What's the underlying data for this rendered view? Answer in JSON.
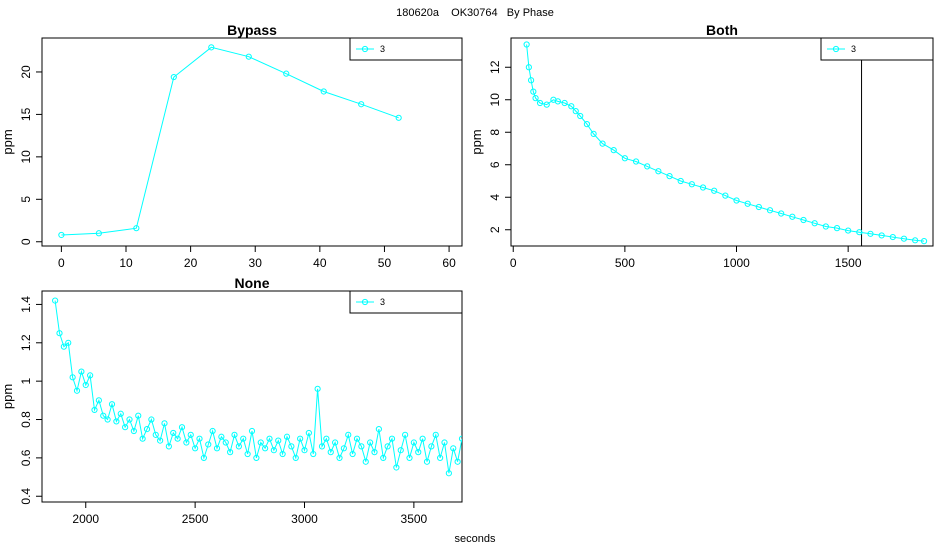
{
  "figure": {
    "suptitle": "180620a    OK30764   By Phase",
    "xlabel": "seconds"
  },
  "style": {
    "series_color": "#00ffff",
    "axis_color": "#000000"
  },
  "chart_data": [
    {
      "type": "line",
      "title": "Bypass",
      "xlabel": "",
      "ylabel": "ppm",
      "xlim": [
        -3,
        62
      ],
      "ylim": [
        -0.5,
        24
      ],
      "xticks": [
        0,
        10,
        20,
        30,
        40,
        50,
        60
      ],
      "yticks": [
        0,
        5,
        10,
        15,
        20
      ],
      "legend": {
        "position": "top-right",
        "entries": [
          "3"
        ]
      },
      "series": [
        {
          "name": "3",
          "x": [
            0,
            5.8,
            11.6,
            17.4,
            23.2,
            29.0,
            34.8,
            40.6,
            46.4,
            52.2
          ],
          "y": [
            0.8,
            1.0,
            1.6,
            19.4,
            22.9,
            21.8,
            19.8,
            17.7,
            16.2,
            14.6
          ]
        }
      ]
    },
    {
      "type": "line",
      "title": "Both",
      "xlabel": "",
      "ylabel": "ppm",
      "xlim": [
        -10,
        1880
      ],
      "ylim": [
        1.0,
        13.8
      ],
      "xticks": [
        0,
        500,
        1000,
        1500
      ],
      "yticks": [
        2,
        4,
        6,
        8,
        10,
        12
      ],
      "vline": 1560,
      "legend": {
        "position": "top-right",
        "entries": [
          "3"
        ]
      },
      "series": [
        {
          "name": "3",
          "x": [
            60,
            70,
            80,
            90,
            100,
            120,
            150,
            180,
            200,
            230,
            260,
            280,
            300,
            330,
            360,
            400,
            450,
            500,
            550,
            600,
            650,
            700,
            750,
            800,
            850,
            900,
            950,
            1000,
            1050,
            1100,
            1150,
            1200,
            1250,
            1300,
            1350,
            1400,
            1450,
            1500,
            1550,
            1600,
            1650,
            1700,
            1750,
            1800,
            1840
          ],
          "y": [
            13.4,
            12.0,
            11.2,
            10.5,
            10.1,
            9.8,
            9.7,
            10.0,
            9.9,
            9.8,
            9.6,
            9.3,
            9.0,
            8.5,
            7.9,
            7.3,
            6.9,
            6.4,
            6.2,
            5.9,
            5.6,
            5.3,
            5.0,
            4.8,
            4.6,
            4.4,
            4.1,
            3.8,
            3.6,
            3.4,
            3.2,
            3.0,
            2.8,
            2.6,
            2.4,
            2.2,
            2.1,
            1.95,
            1.85,
            1.75,
            1.65,
            1.55,
            1.45,
            1.35,
            1.3
          ]
        }
      ]
    },
    {
      "type": "line",
      "title": "None",
      "xlabel": "",
      "ylabel": "ppm",
      "xlim": [
        1800,
        3720
      ],
      "ylim": [
        0.37,
        1.47
      ],
      "xticks": [
        2000,
        2500,
        3000,
        3500
      ],
      "yticks": [
        0.4,
        0.6,
        0.8,
        1.0,
        1.2,
        1.4
      ],
      "legend": {
        "position": "top-right",
        "entries": [
          "3"
        ]
      },
      "series": [
        {
          "name": "3",
          "x": [
            1860,
            1880,
            1900,
            1920,
            1940,
            1960,
            1980,
            2000,
            2020,
            2040,
            2060,
            2080,
            2100,
            2120,
            2140,
            2160,
            2180,
            2200,
            2220,
            2240,
            2260,
            2280,
            2300,
            2320,
            2340,
            2360,
            2380,
            2400,
            2420,
            2440,
            2460,
            2480,
            2500,
            2520,
            2540,
            2560,
            2580,
            2600,
            2620,
            2640,
            2660,
            2680,
            2700,
            2720,
            2740,
            2760,
            2780,
            2800,
            2820,
            2840,
            2860,
            2880,
            2900,
            2920,
            2940,
            2960,
            2980,
            3000,
            3020,
            3040,
            3060,
            3080,
            3100,
            3120,
            3140,
            3160,
            3180,
            3200,
            3220,
            3240,
            3260,
            3280,
            3300,
            3320,
            3340,
            3360,
            3380,
            3400,
            3420,
            3440,
            3460,
            3480,
            3500,
            3520,
            3540,
            3560,
            3580,
            3600,
            3620,
            3640,
            3660,
            3680,
            3700,
            3720
          ],
          "y": [
            1.42,
            1.25,
            1.18,
            1.2,
            1.02,
            0.95,
            1.05,
            0.98,
            1.03,
            0.85,
            0.9,
            0.82,
            0.8,
            0.88,
            0.79,
            0.83,
            0.76,
            0.8,
            0.74,
            0.82,
            0.7,
            0.75,
            0.8,
            0.72,
            0.69,
            0.78,
            0.66,
            0.73,
            0.7,
            0.76,
            0.68,
            0.72,
            0.65,
            0.7,
            0.6,
            0.67,
            0.74,
            0.65,
            0.71,
            0.68,
            0.63,
            0.72,
            0.66,
            0.7,
            0.62,
            0.74,
            0.6,
            0.68,
            0.65,
            0.7,
            0.64,
            0.69,
            0.62,
            0.71,
            0.66,
            0.6,
            0.7,
            0.64,
            0.73,
            0.62,
            0.96,
            0.66,
            0.7,
            0.63,
            0.68,
            0.6,
            0.65,
            0.72,
            0.62,
            0.7,
            0.66,
            0.58,
            0.68,
            0.63,
            0.75,
            0.6,
            0.66,
            0.7,
            0.55,
            0.64,
            0.72,
            0.6,
            0.68,
            0.63,
            0.7,
            0.58,
            0.66,
            0.72,
            0.6,
            0.68,
            0.52,
            0.65,
            0.58,
            0.7
          ]
        }
      ]
    }
  ]
}
